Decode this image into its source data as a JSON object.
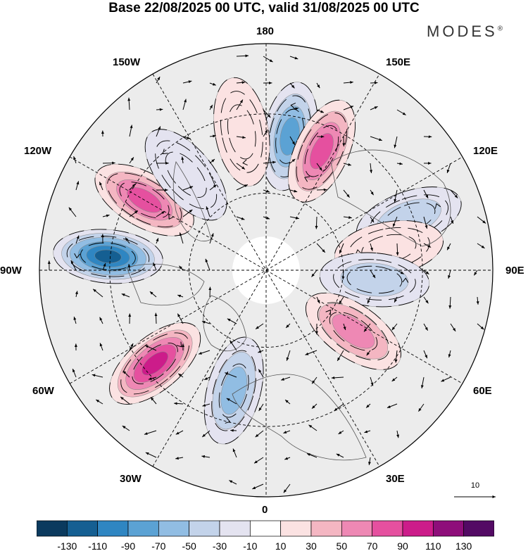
{
  "title": "Base 22/08/2025 00 UTC, valid 31/08/2025 00 UTC",
  "brand": "MODES",
  "brand_mark": "®",
  "longitude_labels": {
    "lon_0": "0",
    "lon_30e": "30E",
    "lon_60e": "60E",
    "lon_90e": "90E",
    "lon_120e": "120E",
    "lon_150e": "150E",
    "lon_180": "180",
    "lon_150w": "150W",
    "lon_120w": "120W",
    "lon_90w": "90W",
    "lon_60w": "60W",
    "lon_30w": "30W"
  },
  "vector_reference": {
    "label": "10"
  },
  "colorbar": {
    "colors": [
      "#0b3a5e",
      "#155f92",
      "#2f86c2",
      "#5ba2d4",
      "#91bde3",
      "#c3d3ea",
      "#e4e3f0",
      "#ffffff",
      "#fbe2e2",
      "#f4b6c2",
      "#ee88b4",
      "#e5509f",
      "#cc1c8a",
      "#8e0e7a",
      "#530a64"
    ],
    "tick_labels": [
      "-130",
      "-110",
      "-90",
      "-70",
      "-50",
      "-30",
      "-10",
      "10",
      "30",
      "50",
      "70",
      "90",
      "110",
      "130"
    ]
  },
  "anomaly_centers": [
    {
      "sign": "negative",
      "strength": 90,
      "sector": "170E"
    },
    {
      "sign": "positive",
      "strength": 90,
      "sector": "155E"
    },
    {
      "sign": "negative",
      "strength": 50,
      "sector": "110E"
    },
    {
      "sign": "positive",
      "strength": 30,
      "sector": "100E"
    },
    {
      "sign": "negative",
      "strength": 50,
      "sector": "85E"
    },
    {
      "sign": "positive",
      "strength": 70,
      "sector": "55E"
    },
    {
      "sign": "negative",
      "strength": 70,
      "sector": "15W"
    },
    {
      "sign": "positive",
      "strength": 110,
      "sector": "50W"
    },
    {
      "sign": "negative",
      "strength": 130,
      "sector": "95W"
    },
    {
      "sign": "positive",
      "strength": 90,
      "sector": "120W"
    },
    {
      "sign": "negative",
      "strength": 30,
      "sector": "140W"
    },
    {
      "sign": "positive",
      "strength": 30,
      "sector": "170W"
    }
  ]
}
